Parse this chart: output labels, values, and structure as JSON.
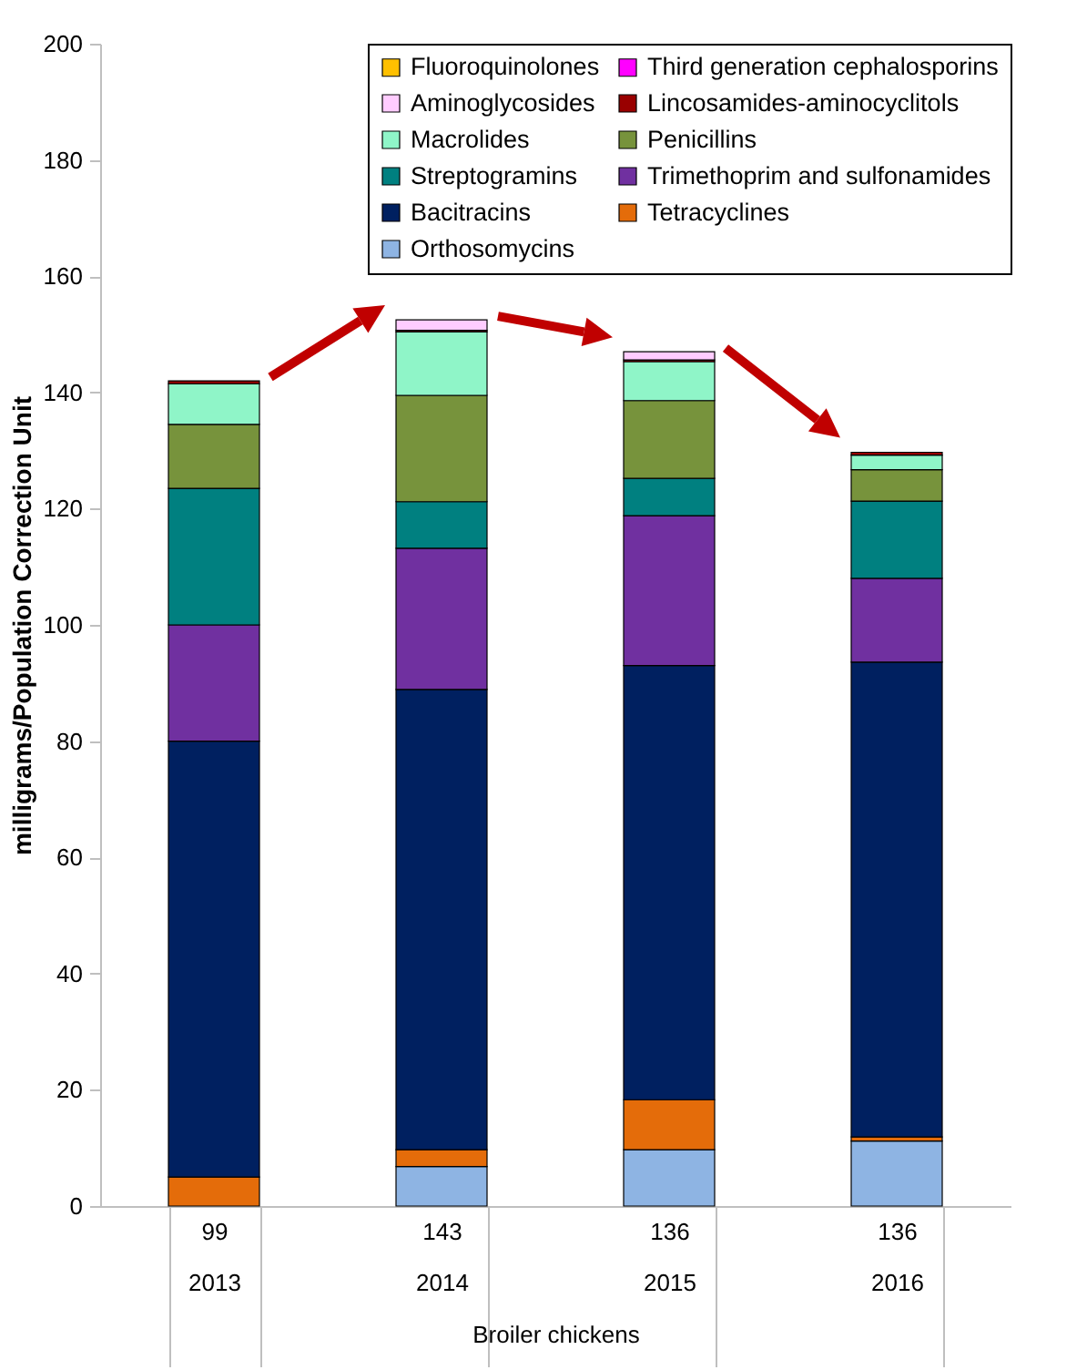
{
  "chart_data": {
    "type": "bar",
    "stacked": true,
    "ylabel": "milligrams/Population Correction Unit",
    "xlabel": "Broiler chickens",
    "categories": [
      "2013",
      "2014",
      "2015",
      "2016"
    ],
    "series": [
      {
        "name": "Orthosomycins",
        "color": "#8eb4e3",
        "values": [
          0,
          6.8,
          9.7,
          11.2
        ]
      },
      {
        "name": "Tetracyclines",
        "color": "#e46c0a",
        "values": [
          5,
          2.9,
          8.6,
          0.7
        ]
      },
      {
        "name": "Bacitracins",
        "color": "#002060",
        "values": [
          75,
          79.2,
          74.7,
          81.7
        ]
      },
      {
        "name": "Trimethoprim and sulfonamides",
        "color": "#7030a0",
        "values": [
          20,
          24.3,
          25.8,
          14.4
        ]
      },
      {
        "name": "Streptogramins",
        "color": "#008080",
        "values": [
          23.5,
          8,
          6.4,
          13.3
        ]
      },
      {
        "name": "Penicillins",
        "color": "#77933c",
        "values": [
          11,
          18.3,
          13.4,
          5.4
        ]
      },
      {
        "name": "Macrolides",
        "color": "#8ff5c8",
        "values": [
          7,
          10.9,
          6.7,
          2.5
        ]
      },
      {
        "name": "Lincosamides-aminocyclitols",
        "color": "#990000",
        "values": [
          0.5,
          0.3,
          0.3,
          0.5
        ]
      },
      {
        "name": "Aminoglycosides",
        "color": "#ffccff",
        "values": [
          0,
          1.8,
          1.4,
          0
        ]
      },
      {
        "name": "Third generation cephalosporins",
        "color": "#ff00ff",
        "values": [
          0,
          0,
          0,
          0
        ]
      },
      {
        "name": "Fluoroquinolones",
        "color": "#ffc000",
        "values": [
          0,
          0,
          0,
          0
        ]
      }
    ],
    "ylim": [
      0,
      200
    ],
    "yticks": [
      0,
      20,
      40,
      60,
      80,
      100,
      120,
      140,
      160,
      180,
      200
    ],
    "grid": false,
    "legend": "top",
    "annotations": [
      "99",
      "143",
      "136",
      "136"
    ]
  }
}
